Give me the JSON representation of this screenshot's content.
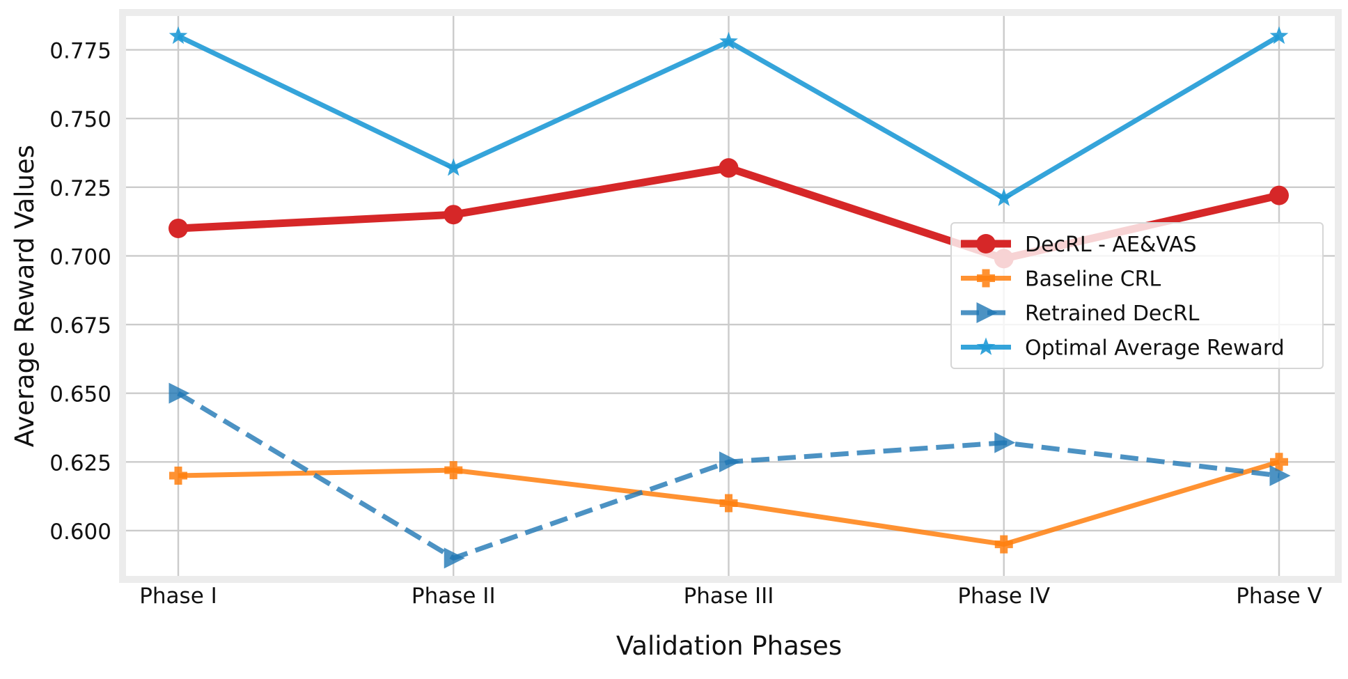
{
  "chart_data": {
    "type": "line",
    "title": "",
    "xlabel": "Validation Phases",
    "ylabel": "Average Reward Values",
    "categories": [
      "Phase I",
      "Phase II",
      "Phase III",
      "Phase IV",
      "Phase V"
    ],
    "ylim": [
      0.5835,
      0.7873
    ],
    "yticks": [
      0.6,
      0.625,
      0.65,
      0.675,
      0.7,
      0.725,
      0.75,
      0.775
    ],
    "ytick_labels": [
      "0.600",
      "0.625",
      "0.650",
      "0.675",
      "0.700",
      "0.725",
      "0.750",
      "0.775"
    ],
    "grid": true,
    "legend_position": "center-right",
    "series": [
      {
        "name": "DecRL - AE&VAS",
        "values": [
          0.71,
          0.715,
          0.732,
          0.699,
          0.722
        ],
        "color": "#d62728",
        "marker": "circle",
        "linestyle": "solid"
      },
      {
        "name": "Baseline CRL",
        "values": [
          0.62,
          0.622,
          0.61,
          0.595,
          0.625
        ],
        "color": "#ff7f0e",
        "marker": "plus",
        "linestyle": "solid"
      },
      {
        "name": "Retrained DecRL",
        "values": [
          0.65,
          0.59,
          0.625,
          0.632,
          0.62
        ],
        "color": "#1f77b4",
        "marker": "triangle-right",
        "linestyle": "dashed"
      },
      {
        "name": "Optimal Average Reward",
        "values": [
          0.78,
          0.732,
          0.778,
          0.721,
          0.78
        ],
        "color": "#1f9ad6",
        "marker": "star",
        "linestyle": "solid"
      }
    ]
  }
}
